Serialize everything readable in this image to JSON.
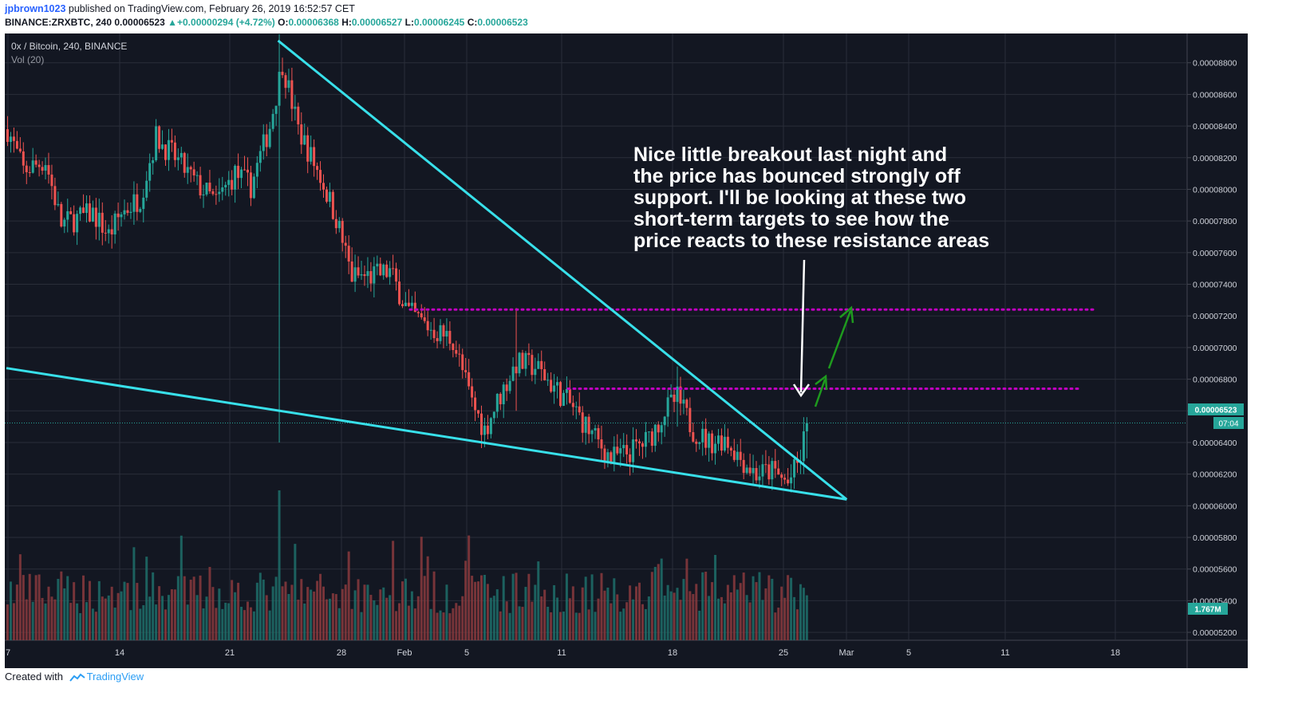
{
  "header": {
    "author": "jpbrown1023",
    "published": "published on TradingView.com, February 26, 2019 16:52:57 CET",
    "symbol": "BINANCE:ZRXBTC, 240",
    "last": "0.00006523",
    "change": "+0.00000294 (+4.72%)",
    "o_label": "O:",
    "o_value": "0.00006368",
    "h_label": "H:",
    "h_value": "0.00006527",
    "l_label": "L:",
    "l_value": "0.00006245",
    "c_label": "C:",
    "c_value": "0.00006523"
  },
  "legend": {
    "title": "0x / Bitcoin, 240, BINANCE",
    "volume": "Vol (20)"
  },
  "price_tag": {
    "value": "0.00006523",
    "countdown": "07:04"
  },
  "volume_tag": "1.767M",
  "annotation": [
    "Nice little breakout last night and",
    "the price has bounced strongly off",
    "support. I'll be looking at these two",
    "short-term targets to see how the",
    "price reacts to these resistance areas"
  ],
  "footer": {
    "created_with": "Created with",
    "brand": "TradingView"
  },
  "colors": {
    "background": "#131722",
    "grid": "#2a2e39",
    "up": "#26a69a",
    "down": "#ef5350",
    "trendline": "#38e0ea",
    "resistance": "#c000c0",
    "arrow_target": "#1e9a1e",
    "arrow_down": "#ffffff"
  },
  "chart_data": {
    "type": "candlestick",
    "x_ticks": [
      "7",
      "14",
      "21",
      "28",
      "Feb",
      "5",
      "11",
      "18",
      "25",
      "Mar",
      "5",
      "11",
      "18"
    ],
    "y_ticks": [
      "0.00008800",
      "0.00008600",
      "0.00008400",
      "0.00008200",
      "0.00008000",
      "0.00007800",
      "0.00007600",
      "0.00007400",
      "0.00007200",
      "0.00007000",
      "0.00006800",
      "0.00006600",
      "0.00006400",
      "0.00006200",
      "0.00006000",
      "0.00005800",
      "0.00005600",
      "0.00005400",
      "0.00005200"
    ],
    "y_range": [
      5.15e-05,
      8.985e-05
    ],
    "anchors": [
      {
        "t": 0,
        "p": 8.38e-05
      },
      {
        "t": 5,
        "p": 8.12e-05
      },
      {
        "t": 12,
        "p": 8.18e-05
      },
      {
        "t": 17,
        "p": 7.78e-05
      },
      {
        "t": 27,
        "p": 7.85e-05
      },
      {
        "t": 32,
        "p": 7.71e-05
      },
      {
        "t": 36,
        "p": 7.85e-05
      },
      {
        "t": 42,
        "p": 7.95e-05
      },
      {
        "t": 47,
        "p": 8.33e-05
      },
      {
        "t": 53,
        "p": 8.2e-05
      },
      {
        "t": 60,
        "p": 8.03e-05
      },
      {
        "t": 66,
        "p": 7.92e-05
      },
      {
        "t": 72,
        "p": 8.1e-05
      },
      {
        "t": 77,
        "p": 8.02e-05
      },
      {
        "t": 83,
        "p": 8.4e-05
      },
      {
        "t": 87,
        "p": 8.8e-05
      },
      {
        "t": 92,
        "p": 8.38e-05
      },
      {
        "t": 99,
        "p": 8.08e-05
      },
      {
        "t": 104,
        "p": 7.82e-05
      },
      {
        "t": 109,
        "p": 7.45e-05
      },
      {
        "t": 115,
        "p": 7.45e-05
      },
      {
        "t": 121,
        "p": 7.48e-05
      },
      {
        "t": 127,
        "p": 7.22e-05
      },
      {
        "t": 134,
        "p": 7.12e-05
      },
      {
        "t": 141,
        "p": 7.05e-05
      },
      {
        "t": 147,
        "p": 6.65e-05
      },
      {
        "t": 151,
        "p": 6.48e-05
      },
      {
        "t": 156,
        "p": 6.7e-05
      },
      {
        "t": 161,
        "p": 6.9e-05
      },
      {
        "t": 167,
        "p": 6.88e-05
      },
      {
        "t": 173,
        "p": 6.75e-05
      },
      {
        "t": 179,
        "p": 6.62e-05
      },
      {
        "t": 185,
        "p": 6.45e-05
      },
      {
        "t": 191,
        "p": 6.3e-05
      },
      {
        "t": 197,
        "p": 6.34e-05
      },
      {
        "t": 203,
        "p": 6.42e-05
      },
      {
        "t": 208,
        "p": 6.6e-05
      },
      {
        "t": 212,
        "p": 6.68e-05
      },
      {
        "t": 217,
        "p": 6.48e-05
      },
      {
        "t": 222,
        "p": 6.4e-05
      },
      {
        "t": 227,
        "p": 6.43e-05
      },
      {
        "t": 232,
        "p": 6.3e-05
      },
      {
        "t": 237,
        "p": 6.2e-05
      },
      {
        "t": 242,
        "p": 6.22e-05
      },
      {
        "t": 247,
        "p": 6.14e-05
      },
      {
        "t": 251,
        "p": 6.3e-05
      },
      {
        "t": 253,
        "p": 6.52e-05
      }
    ],
    "resistance_levels": [
      7.24e-05,
      6.74e-05
    ],
    "trendlines": [
      {
        "from": {
          "t": 86,
          "p": 8.94e-05
        },
        "to": {
          "t": 266,
          "p": 6.04e-05
        }
      },
      {
        "from": {
          "t": 0,
          "p": 6.87e-05
        },
        "to": {
          "t": 266,
          "p": 6.04e-05
        }
      }
    ]
  }
}
